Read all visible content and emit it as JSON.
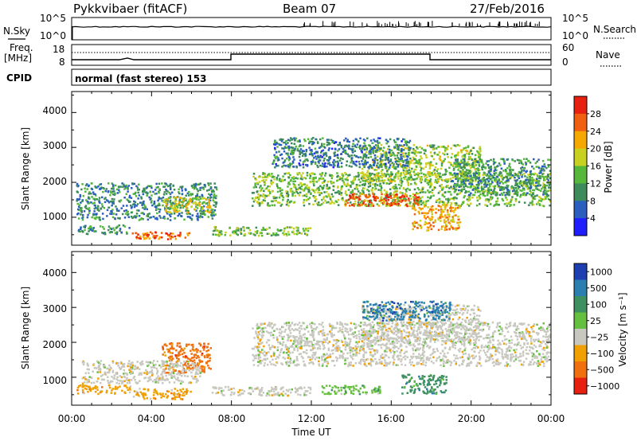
{
  "header": {
    "station": "Pykkvibaer (fitACF)",
    "beam": "Beam 07",
    "date": "27/Feb/2016"
  },
  "top_panels": {
    "nsky_label": "N.Sky",
    "nsky_ticks": [
      "10^5",
      "10^0"
    ],
    "nsearch_label": "N.Search",
    "nsearch_ticks": [
      "10^5",
      "10^0"
    ],
    "freq_label": "Freq.",
    "freq_unit": "[MHz]",
    "freq_ticks": [
      "18",
      "8"
    ],
    "nave_label": "Nave",
    "nave_ticks": [
      "60",
      "0"
    ],
    "cpid_label": "CPID",
    "cpid_value": "normal (fast stereo) 153"
  },
  "colors": {
    "power_scale": [
      "#1e1eff",
      "#2a5fbf",
      "#3d8a5a",
      "#55b83a",
      "#c8d020",
      "#f5a800",
      "#f06010",
      "#e82010"
    ],
    "velocity_scale": [
      "#1e3fb0",
      "#2a7fb0",
      "#3d9060",
      "#66c040",
      "#c8c8c0",
      "#f0a000",
      "#f07010",
      "#e82010"
    ]
  },
  "chart_data": [
    {
      "type": "heatmap",
      "name": "power",
      "ylabel": "Slant Range [km]",
      "yticks": [
        "1000",
        "2000",
        "3000",
        "4000"
      ],
      "ylim": [
        200,
        4600
      ],
      "xlim_hours": [
        0,
        24
      ],
      "colorbar_label": "Power [dB]",
      "colorbar_ticks": [
        "4",
        "8",
        "12",
        "16",
        "20",
        "24",
        "28"
      ],
      "clim": [
        0,
        31
      ],
      "regions": [
        {
          "t0": 0.2,
          "t1": 7.3,
          "r0": 900,
          "r1": 2000,
          "v": 9
        },
        {
          "t0": 4.5,
          "t1": 7.0,
          "r0": 1100,
          "r1": 1600,
          "v": 18
        },
        {
          "t0": 3.0,
          "t1": 6.0,
          "r0": 350,
          "r1": 600,
          "v": 26
        },
        {
          "t0": 0.3,
          "t1": 3.0,
          "r0": 500,
          "r1": 800,
          "v": 10
        },
        {
          "t0": 7.0,
          "t1": 12.0,
          "r0": 450,
          "r1": 750,
          "v": 14
        },
        {
          "t0": 9.0,
          "t1": 24.0,
          "r0": 1300,
          "r1": 2300,
          "v": 14
        },
        {
          "t0": 13.5,
          "t1": 17.5,
          "r0": 1300,
          "r1": 1700,
          "v": 26
        },
        {
          "t0": 17.0,
          "t1": 19.5,
          "r0": 600,
          "r1": 1400,
          "v": 22
        },
        {
          "t0": 14.5,
          "t1": 20.5,
          "r0": 2000,
          "r1": 3100,
          "v": 15
        },
        {
          "t0": 10.0,
          "t1": 17.0,
          "r0": 2400,
          "r1": 3300,
          "v": 8
        },
        {
          "t0": 19.0,
          "t1": 24.0,
          "r0": 1600,
          "r1": 2700,
          "v": 10
        }
      ]
    },
    {
      "type": "heatmap",
      "name": "velocity",
      "ylabel": "Slant Range [km]",
      "yticks": [
        "1000",
        "2000",
        "3000",
        "4000"
      ],
      "ylim": [
        200,
        4600
      ],
      "xlim_hours": [
        0,
        24
      ],
      "colorbar_label": "Velocity [m s⁻¹]",
      "colorbar_ticks": [
        "1000",
        "500",
        "100",
        "25",
        "−25",
        "−100",
        "−500",
        "−1000"
      ],
      "regions": [
        {
          "t0": 0.2,
          "t1": 3.0,
          "r0": 500,
          "r1": 800,
          "v": "-100"
        },
        {
          "t0": 3.0,
          "t1": 6.0,
          "r0": 350,
          "r1": 700,
          "v": "-100"
        },
        {
          "t0": 4.5,
          "t1": 7.0,
          "r0": 1100,
          "r1": 2000,
          "v": "-500"
        },
        {
          "t0": 0.5,
          "t1": 6.5,
          "r0": 800,
          "r1": 1500,
          "v": "0"
        },
        {
          "t0": 7.0,
          "t1": 12.0,
          "r0": 450,
          "r1": 750,
          "v": "0"
        },
        {
          "t0": 9.0,
          "t1": 24.0,
          "r0": 1300,
          "r1": 2600,
          "v": "0"
        },
        {
          "t0": 14.5,
          "t1": 20.5,
          "r0": 2000,
          "r1": 3100,
          "v": "0"
        },
        {
          "t0": 16.5,
          "t1": 18.8,
          "r0": 500,
          "r1": 1100,
          "v": "100"
        },
        {
          "t0": 12.5,
          "t1": 15.5,
          "r0": 500,
          "r1": 800,
          "v": "25"
        },
        {
          "t0": 14.5,
          "t1": 19.0,
          "r0": 2600,
          "r1": 3200,
          "v": "500"
        }
      ]
    }
  ],
  "xaxis": {
    "ticks": [
      "00:00",
      "04:00",
      "08:00",
      "12:00",
      "16:00",
      "20:00",
      "00:00"
    ],
    "label": "Time UT"
  }
}
